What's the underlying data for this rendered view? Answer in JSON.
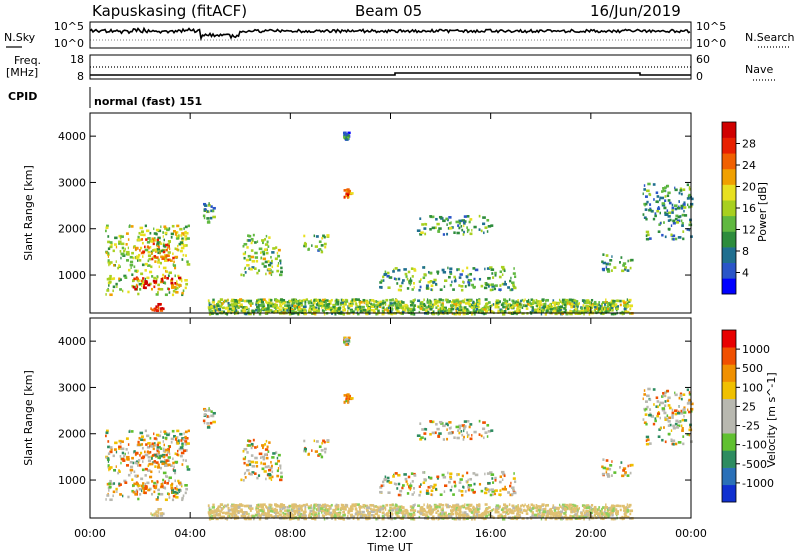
{
  "header": {
    "station": "Kapuskasing (fitACF)",
    "beam": "Beam 05",
    "date": "16/Jun/2019"
  },
  "status_panels": {
    "nsky_label": "N.Sky",
    "nsearch_label": "N.Search",
    "freq_label_line1": "Freq.",
    "freq_label_line2": "[MHz]",
    "nave_label": "Nave",
    "cpid_label": "CPID",
    "cpid_text": "normal (fast) 151",
    "noise_left_ticks": [
      "10^5",
      "10^0"
    ],
    "noise_right_ticks": [
      "10^5",
      "10^0"
    ],
    "freq_left_ticks": [
      "18",
      "8"
    ],
    "freq_right_ticks": [
      "60",
      "0"
    ]
  },
  "chart_data": [
    {
      "type": "heatmap",
      "panel": "power",
      "ylabel": "Slant Range [km]",
      "xlabel": "",
      "ylim": [
        180,
        4500
      ],
      "yticks": [
        1000,
        2000,
        3000,
        4000
      ],
      "colorbar_label": "Power [dB]",
      "colorbar_ticks": [
        "28",
        "24",
        "20",
        "16",
        "12",
        "8",
        "4"
      ],
      "colorbar_colors": [
        "#0000ff",
        "#2a55c8",
        "#1f6f8f",
        "#2d8c3c",
        "#60b840",
        "#a8d020",
        "#e8e020",
        "#f0a000",
        "#f06000",
        "#e82000",
        "#d00000"
      ],
      "echo_regions": [
        {
          "t0": 0.6,
          "t1": 3.9,
          "r0": 600,
          "r1": 2100,
          "level": 0.5
        },
        {
          "t0": 1.5,
          "t1": 3.6,
          "r0": 700,
          "r1": 1000,
          "level": 0.85
        },
        {
          "t0": 1.8,
          "t1": 3.4,
          "r0": 1300,
          "r1": 1800,
          "level": 0.7
        },
        {
          "t0": 2.4,
          "t1": 2.9,
          "r0": 250,
          "r1": 400,
          "level": 0.95
        },
        {
          "t0": 4.5,
          "t1": 4.9,
          "r0": 2100,
          "r1": 2600,
          "level": 0.3
        },
        {
          "t0": 6.0,
          "t1": 7.6,
          "r0": 1000,
          "r1": 1900,
          "level": 0.45
        },
        {
          "t0": 8.5,
          "t1": 9.5,
          "r0": 1500,
          "r1": 1900,
          "level": 0.35
        },
        {
          "t0": 10.1,
          "t1": 10.4,
          "r0": 2700,
          "r1": 2900,
          "level": 0.8
        },
        {
          "t0": 10.1,
          "t1": 10.3,
          "r0": 3950,
          "r1": 4100,
          "level": 0.2
        },
        {
          "t0": 11.5,
          "t1": 17.0,
          "r0": 700,
          "r1": 1200,
          "level": 0.35
        },
        {
          "t0": 13.0,
          "t1": 16.0,
          "r0": 1900,
          "r1": 2300,
          "level": 0.35
        },
        {
          "t0": 20.4,
          "t1": 21.6,
          "r0": 1100,
          "r1": 1500,
          "level": 0.3
        },
        {
          "t0": 22.0,
          "t1": 24.0,
          "r0": 1800,
          "r1": 3000,
          "level": 0.3
        }
      ],
      "ground_band": {
        "t0": 4.7,
        "t1": 21.6,
        "r0": 180,
        "r1": 500,
        "level": 0.45
      }
    },
    {
      "type": "heatmap",
      "panel": "velocity",
      "ylabel": "Slant Range [km]",
      "xlabel": "Time UT",
      "ylim": [
        180,
        4500
      ],
      "yticks": [
        1000,
        2000,
        3000,
        4000
      ],
      "xticks": [
        "00:00",
        "04:00",
        "08:00",
        "12:00",
        "16:00",
        "20:00",
        "00:00"
      ],
      "colorbar_label": "Velocity [m s^-1]",
      "colorbar_ticks": [
        "1000",
        "500",
        "100",
        "25",
        "-25",
        "-100",
        "-500",
        "-1000"
      ],
      "colorbar_colors": [
        "#1030d0",
        "#2a70b8",
        "#2d8c60",
        "#60c030",
        "#b8b8b0",
        "#b8b8b0",
        "#f0c000",
        "#f09000",
        "#f05000",
        "#e80000"
      ]
    }
  ]
}
